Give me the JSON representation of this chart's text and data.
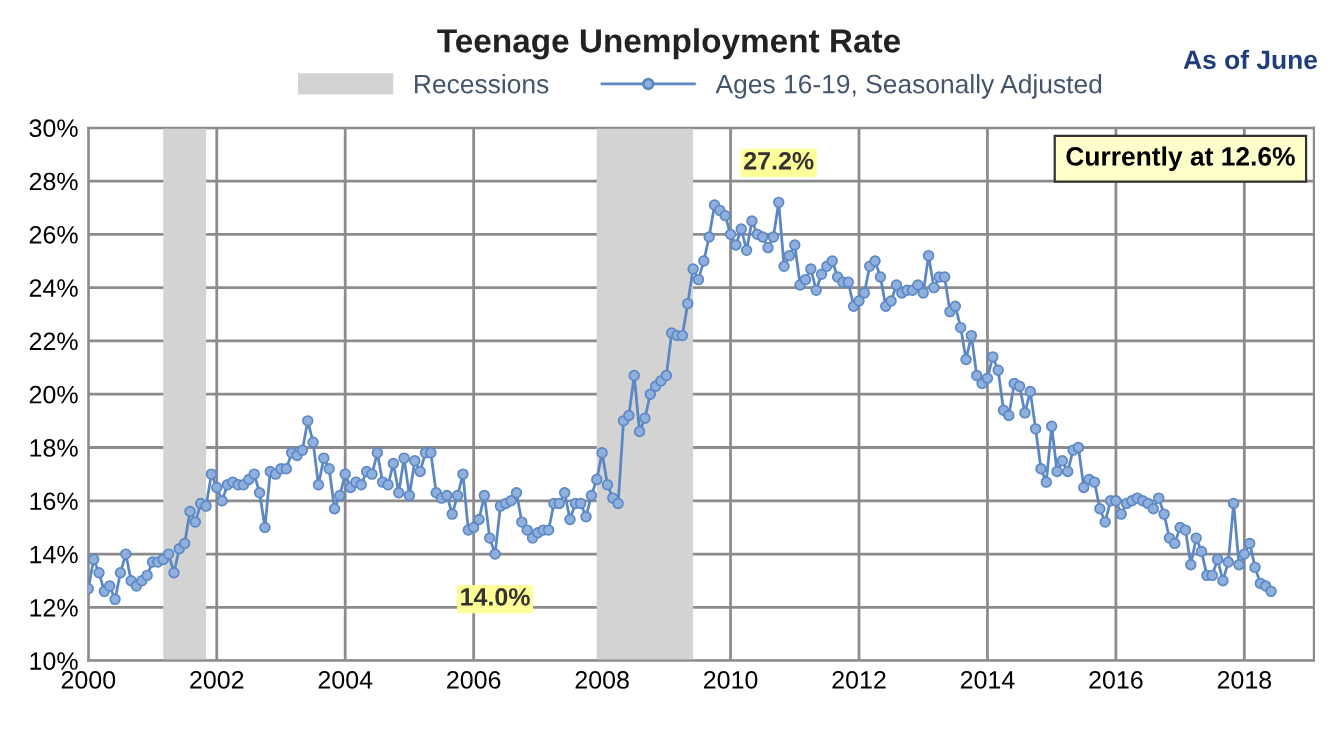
{
  "chart_data": {
    "type": "line",
    "title": "Teenage Unemployment Rate",
    "x": [
      "2000-01",
      "2000-02",
      "2000-03",
      "2000-04",
      "2000-05",
      "2000-06",
      "2000-07",
      "2000-08",
      "2000-09",
      "2000-10",
      "2000-11",
      "2000-12",
      "2001-01",
      "2001-02",
      "2001-03",
      "2001-04",
      "2001-05",
      "2001-06",
      "2001-07",
      "2001-08",
      "2001-09",
      "2001-10",
      "2001-11",
      "2001-12",
      "2002-01",
      "2002-02",
      "2002-03",
      "2002-04",
      "2002-05",
      "2002-06",
      "2002-07",
      "2002-08",
      "2002-09",
      "2002-10",
      "2002-11",
      "2002-12",
      "2003-01",
      "2003-02",
      "2003-03",
      "2003-04",
      "2003-05",
      "2003-06",
      "2003-07",
      "2003-08",
      "2003-09",
      "2003-10",
      "2003-11",
      "2003-12",
      "2004-01",
      "2004-02",
      "2004-03",
      "2004-04",
      "2004-05",
      "2004-06",
      "2004-07",
      "2004-08",
      "2004-09",
      "2004-10",
      "2004-11",
      "2004-12",
      "2005-01",
      "2005-02",
      "2005-03",
      "2005-04",
      "2005-05",
      "2005-06",
      "2005-07",
      "2005-08",
      "2005-09",
      "2005-10",
      "2005-11",
      "2005-12",
      "2006-01",
      "2006-02",
      "2006-03",
      "2006-04",
      "2006-05",
      "2006-06",
      "2006-07",
      "2006-08",
      "2006-09",
      "2006-10",
      "2006-11",
      "2006-12",
      "2007-01",
      "2007-02",
      "2007-03",
      "2007-04",
      "2007-05",
      "2007-06",
      "2007-07",
      "2007-08",
      "2007-09",
      "2007-10",
      "2007-11",
      "2007-12",
      "2008-01",
      "2008-02",
      "2008-03",
      "2008-04",
      "2008-05",
      "2008-06",
      "2008-07",
      "2008-08",
      "2008-09",
      "2008-10",
      "2008-11",
      "2008-12",
      "2009-01",
      "2009-02",
      "2009-03",
      "2009-04",
      "2009-05",
      "2009-06",
      "2009-07",
      "2009-08",
      "2009-09",
      "2009-10",
      "2009-11",
      "2009-12",
      "2010-01",
      "2010-02",
      "2010-03",
      "2010-04",
      "2010-05",
      "2010-06",
      "2010-07",
      "2010-08",
      "2010-09",
      "2010-10",
      "2010-11",
      "2010-12",
      "2011-01",
      "2011-02",
      "2011-03",
      "2011-04",
      "2011-05",
      "2011-06",
      "2011-07",
      "2011-08",
      "2011-09",
      "2011-10",
      "2011-11",
      "2011-12",
      "2012-01",
      "2012-02",
      "2012-03",
      "2012-04",
      "2012-05",
      "2012-06",
      "2012-07",
      "2012-08",
      "2012-09",
      "2012-10",
      "2012-11",
      "2012-12",
      "2013-01",
      "2013-02",
      "2013-03",
      "2013-04",
      "2013-05",
      "2013-06",
      "2013-07",
      "2013-08",
      "2013-09",
      "2013-10",
      "2013-11",
      "2013-12",
      "2014-01",
      "2014-02",
      "2014-03",
      "2014-04",
      "2014-05",
      "2014-06",
      "2014-07",
      "2014-08",
      "2014-09",
      "2014-10",
      "2014-11",
      "2014-12",
      "2015-01",
      "2015-02",
      "2015-03",
      "2015-04",
      "2015-05",
      "2015-06",
      "2015-07",
      "2015-08",
      "2015-09",
      "2015-10",
      "2015-11",
      "2015-12",
      "2016-01",
      "2016-02",
      "2016-03",
      "2016-04",
      "2016-05",
      "2016-06",
      "2016-07",
      "2016-08",
      "2016-09",
      "2016-10",
      "2016-11",
      "2016-12",
      "2017-01",
      "2017-02",
      "2017-03",
      "2017-04",
      "2017-05",
      "2017-06",
      "2017-07",
      "2017-08",
      "2017-09",
      "2017-10",
      "2017-11",
      "2017-12",
      "2018-01",
      "2018-02",
      "2018-03",
      "2018-04",
      "2018-05",
      "2018-06"
    ],
    "series": [
      {
        "name": "Ages 16-19, Seasonally Adjusted",
        "color": "#5b87c5",
        "values": [
          12.7,
          13.8,
          13.3,
          12.6,
          12.8,
          12.3,
          13.3,
          14.0,
          13.0,
          12.8,
          13.0,
          13.2,
          13.7,
          13.7,
          13.8,
          14.0,
          13.3,
          14.2,
          14.4,
          15.6,
          15.2,
          15.9,
          15.8,
          17.0,
          16.5,
          16.0,
          16.6,
          16.7,
          16.6,
          16.6,
          16.8,
          17.0,
          16.3,
          15.0,
          17.1,
          17.0,
          17.2,
          17.2,
          17.8,
          17.7,
          17.9,
          19.0,
          18.2,
          16.6,
          17.6,
          17.2,
          15.7,
          16.2,
          17.0,
          16.5,
          16.7,
          16.6,
          17.1,
          17.0,
          17.8,
          16.7,
          16.6,
          17.4,
          16.3,
          17.6,
          16.2,
          17.5,
          17.1,
          17.8,
          17.8,
          16.3,
          16.1,
          16.2,
          15.5,
          16.2,
          17.0,
          14.9,
          15.0,
          15.3,
          16.2,
          14.6,
          14.0,
          15.8,
          15.9,
          16.0,
          16.3,
          15.2,
          14.9,
          14.6,
          14.8,
          14.9,
          14.9,
          15.9,
          15.9,
          16.3,
          15.3,
          15.9,
          15.9,
          15.4,
          16.2,
          16.8,
          17.8,
          16.6,
          16.1,
          15.9,
          19.0,
          19.2,
          20.7,
          18.6,
          19.1,
          20.0,
          20.3,
          20.5,
          20.7,
          22.3,
          22.2,
          22.2,
          23.4,
          24.7,
          24.3,
          25.0,
          25.9,
          27.1,
          26.9,
          26.7,
          26.0,
          25.6,
          26.2,
          25.4,
          26.5,
          26.0,
          25.9,
          25.5,
          25.9,
          27.2,
          24.8,
          25.2,
          25.6,
          24.1,
          24.3,
          24.7,
          23.9,
          24.5,
          24.8,
          25.0,
          24.4,
          24.2,
          24.2,
          23.3,
          23.5,
          23.8,
          24.8,
          25.0,
          24.4,
          23.3,
          23.5,
          24.1,
          23.8,
          23.9,
          23.9,
          24.1,
          23.8,
          25.2,
          24.0,
          24.4,
          24.4,
          23.1,
          23.3,
          22.5,
          21.3,
          22.2,
          20.7,
          20.4,
          20.6,
          21.4,
          20.9,
          19.4,
          19.2,
          20.4,
          20.3,
          19.3,
          20.1,
          18.7,
          17.2,
          16.7,
          18.8,
          17.1,
          17.5,
          17.1,
          17.9,
          18.0,
          16.5,
          16.8,
          16.7,
          15.7,
          15.2,
          16.0,
          16.0,
          15.5,
          15.9,
          16.0,
          16.1,
          16.0,
          15.9,
          15.7,
          16.1,
          15.5,
          14.6,
          14.4,
          15.0,
          14.9,
          13.6,
          14.6,
          14.1,
          13.2,
          13.2,
          13.8,
          13.0,
          13.7,
          15.9,
          13.6,
          14.0,
          14.4,
          13.5,
          12.9,
          12.8,
          12.6
        ]
      }
    ],
    "xlim": [
      "2000-01",
      "2019-02"
    ],
    "xticks": [
      "2000",
      "2002",
      "2004",
      "2006",
      "2008",
      "2010",
      "2012",
      "2014",
      "2016",
      "2018"
    ],
    "ylim": [
      10,
      30
    ],
    "yticks": [
      {
        "value": 10,
        "label": "10%"
      },
      {
        "value": 12,
        "label": "12%"
      },
      {
        "value": 14,
        "label": "14%"
      },
      {
        "value": 16,
        "label": "16%"
      },
      {
        "value": 18,
        "label": "18%"
      },
      {
        "value": 20,
        "label": "20%"
      },
      {
        "value": 22,
        "label": "22%"
      },
      {
        "value": 24,
        "label": "24%"
      },
      {
        "value": 26,
        "label": "26%"
      },
      {
        "value": 28,
        "label": "28%"
      },
      {
        "value": 30,
        "label": "30%"
      }
    ],
    "bands": [
      {
        "axis": "x",
        "from": "2001-03",
        "to": "2001-11",
        "label": "Recessions",
        "color": "#d3d3d3"
      },
      {
        "axis": "x",
        "from": "2007-12",
        "to": "2009-06",
        "color": "#d3d3d3"
      }
    ],
    "annotations": [
      "As of June",
      "Currently at 12.6%",
      {
        "text": "27.2%",
        "x": "2010-10",
        "y": 27.2
      },
      {
        "text": "14.0%",
        "x": "2006-05",
        "y": 14.0
      }
    ],
    "grid": true,
    "legend": "top",
    "marker": "circle",
    "line_style": "solid"
  }
}
